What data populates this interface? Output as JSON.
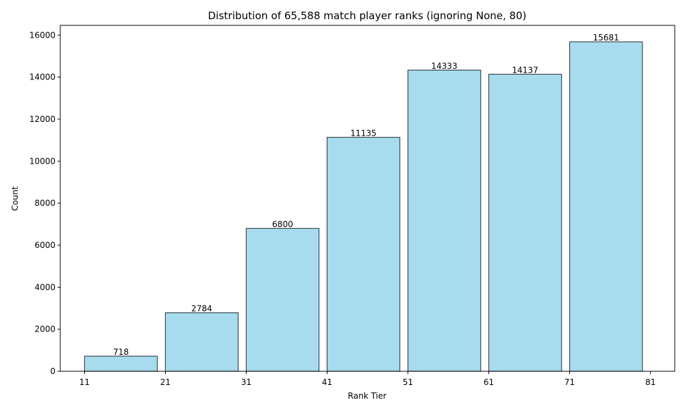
{
  "chart_data": {
    "type": "bar",
    "title": "Distribution of 65,588 match player ranks (ignoring None, 80)",
    "xlabel": "Rank Tier",
    "ylabel": "Count",
    "bins": [
      {
        "start": 11,
        "end": 21,
        "value": 718
      },
      {
        "start": 21,
        "end": 31,
        "value": 2784
      },
      {
        "start": 31,
        "end": 41,
        "value": 6800
      },
      {
        "start": 41,
        "end": 51,
        "value": 11135
      },
      {
        "start": 51,
        "end": 61,
        "value": 14333
      },
      {
        "start": 61,
        "end": 71,
        "value": 14137
      },
      {
        "start": 71,
        "end": 81,
        "value": 15681
      }
    ],
    "x_ticks": [
      "11",
      "21",
      "31",
      "41",
      "51",
      "61",
      "71",
      "81"
    ],
    "y_ticks": [
      0,
      2000,
      4000,
      6000,
      8000,
      10000,
      12000,
      14000,
      16000
    ],
    "xlim": [
      8.0,
      84.0
    ],
    "ylim": [
      0,
      16465
    ],
    "grid": false,
    "bar_fill": "#a8dbee",
    "bar_edge": "#3a4a50"
  }
}
